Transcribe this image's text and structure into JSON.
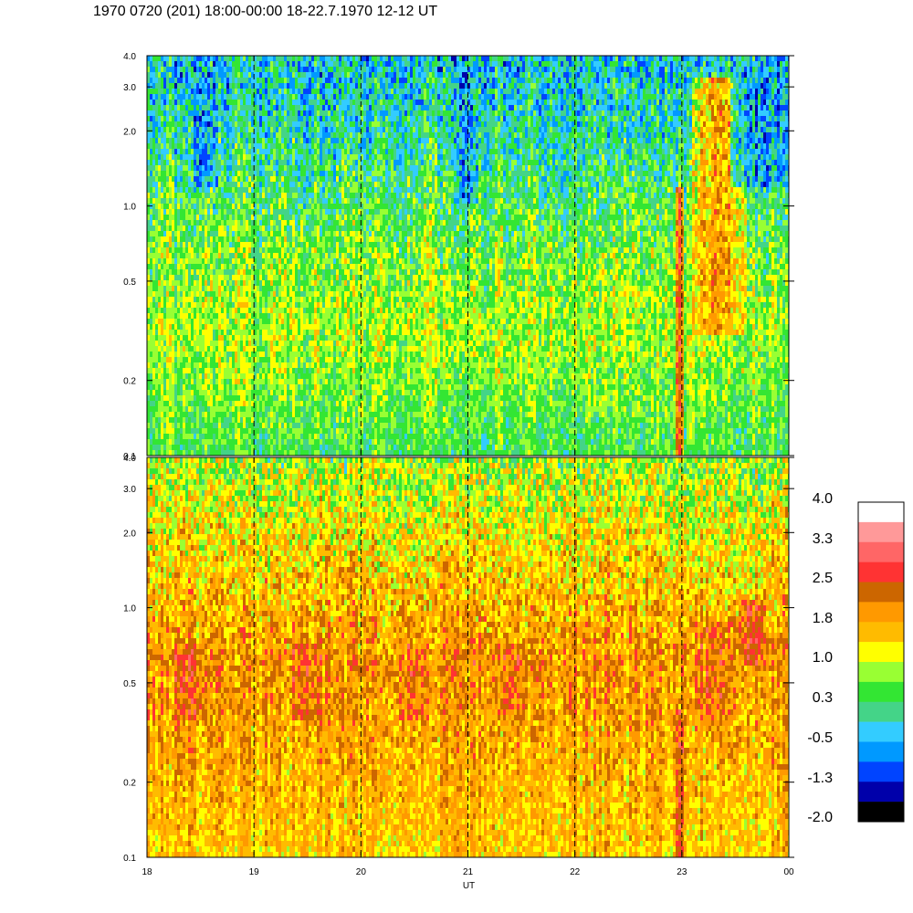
{
  "title": "1970 0720 (201) 18:00-00:00 18-22.7.1970  12-12 UT",
  "chart_data": [
    {
      "type": "heatmap",
      "panel": "upper",
      "x_ticks": [
        "18",
        "19",
        "20",
        "21",
        "22",
        "23",
        "00"
      ],
      "y_scale": "log",
      "ylim": [
        0.1,
        4.0
      ],
      "y_ticks": [
        0.1,
        0.2,
        0.5,
        1.0,
        2.0,
        3.0,
        4.0
      ],
      "y_tick_labels": [
        "0.1",
        "0.2",
        "0.5",
        "1.0",
        "2.0",
        "3.0",
        "4.0"
      ],
      "x_hours": [
        18,
        19,
        20,
        21,
        22,
        23,
        24
      ],
      "dashed_lines_at_hours": [
        19,
        20,
        21,
        22,
        23
      ],
      "dominant_level": 0.5,
      "level_by_freq": [
        [
          0.1,
          0.4
        ],
        [
          0.3,
          0.9
        ],
        [
          0.6,
          0.7
        ],
        [
          1.0,
          0.4
        ],
        [
          2.0,
          0.0
        ],
        [
          4.0,
          -0.3
        ]
      ],
      "features": [
        {
          "x_hour": 22.97,
          "width_hours": 0.08,
          "fmin": 0.1,
          "fmax": 1.2,
          "level": 2.6
        },
        {
          "x_hour": 23.35,
          "width_hours": 0.5,
          "fmin": 0.3,
          "fmax": 3.2,
          "level": 1.9
        },
        {
          "x_hour": 18.55,
          "width_hours": 0.25,
          "fmin": 1.2,
          "fmax": 3.5,
          "level": -0.6
        },
        {
          "x_hour": 21.0,
          "width_hours": 0.2,
          "fmin": 1.0,
          "fmax": 3.5,
          "level": -0.6
        },
        {
          "x_hour": 23.75,
          "width_hours": 0.6,
          "fmin": 1.2,
          "fmax": 3.5,
          "level": -0.5
        }
      ]
    },
    {
      "type": "heatmap",
      "panel": "lower",
      "x_ticks": [
        "18",
        "19",
        "20",
        "21",
        "22",
        "23",
        "00"
      ],
      "xlabel": "UT",
      "y_scale": "log",
      "ylim": [
        0.1,
        4.0
      ],
      "y_ticks": [
        0.1,
        0.2,
        0.5,
        1.0,
        2.0,
        3.0,
        4.0
      ],
      "y_tick_labels": [
        "0.1",
        "0.2",
        "0.5",
        "1.0",
        "2.0",
        "3.0",
        "4.0"
      ],
      "x_hours": [
        18,
        19,
        20,
        21,
        22,
        23,
        24
      ],
      "dashed_lines_at_hours": [
        19,
        20,
        21,
        22,
        23
      ],
      "dominant_level": 1.8,
      "level_by_freq": [
        [
          0.1,
          1.5
        ],
        [
          0.3,
          1.8
        ],
        [
          0.6,
          1.95
        ],
        [
          1.0,
          1.7
        ],
        [
          2.0,
          1.3
        ],
        [
          4.0,
          0.8
        ]
      ],
      "features": [
        {
          "x_hour": 22.97,
          "width_hours": 0.08,
          "fmin": 0.1,
          "fmax": 0.4,
          "level": 2.7
        },
        {
          "x_hour": 18.4,
          "width_hours": 0.3,
          "fmin": 0.35,
          "fmax": 0.7,
          "level": 2.3
        },
        {
          "x_hour": 19.5,
          "width_hours": 0.3,
          "fmin": 0.35,
          "fmax": 0.7,
          "level": 2.3
        },
        {
          "x_hour": 20.5,
          "width_hours": 0.3,
          "fmin": 0.35,
          "fmax": 0.7,
          "level": 2.3
        },
        {
          "x_hour": 21.4,
          "width_hours": 0.3,
          "fmin": 0.35,
          "fmax": 0.7,
          "level": 2.3
        },
        {
          "x_hour": 23.3,
          "width_hours": 0.4,
          "fmin": 0.35,
          "fmax": 0.9,
          "level": 2.3
        },
        {
          "x_hour": 23.65,
          "width_hours": 0.25,
          "fmin": 0.6,
          "fmax": 1.1,
          "level": 2.6
        }
      ]
    }
  ],
  "colorbar": {
    "labels": [
      "4.0",
      "3.3",
      "2.5",
      "1.8",
      "1.0",
      "0.3",
      "-0.5",
      "-1.3",
      "-2.0"
    ],
    "colors": [
      "#ffffff",
      "#ff9999",
      "#ff6666",
      "#ff3333",
      "#cc6600",
      "#ff9900",
      "#ffbb00",
      "#ffff00",
      "#99ff33",
      "#33e633",
      "#44d488",
      "#33ccff",
      "#0099ff",
      "#0044ff",
      "#0000aa",
      "#000000"
    ],
    "vmin": -2.0,
    "vmax": 4.0
  }
}
